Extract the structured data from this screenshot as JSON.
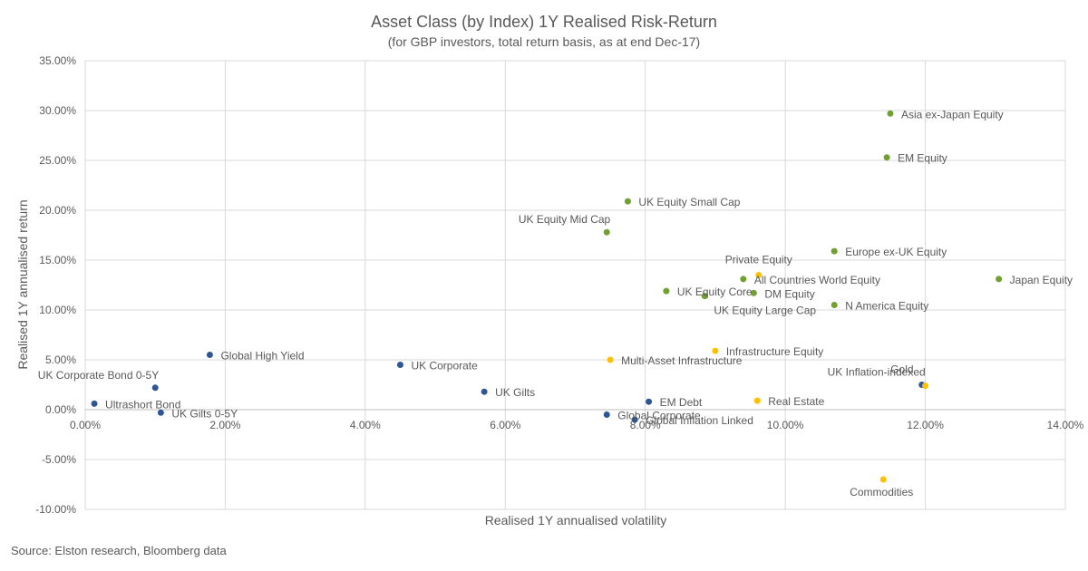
{
  "colors": {
    "fixed_income": "#2f5597",
    "equity": "#70a030",
    "alternatives": "#ffc000",
    "grid": "#d9d9d9",
    "text": "#595959"
  },
  "source_note": "Source: Elston research, Bloomberg data",
  "chart_data": {
    "type": "scatter",
    "title": "Asset Class (by Index) 1Y Realised Risk-Return",
    "subtitle": "(for GBP investors, total return basis, as at end Dec-17)",
    "xlabel": "Realised  1Y annualised volatility",
    "ylabel": "Realised 1Y annualised return",
    "xlim": [
      0,
      14
    ],
    "ylim": [
      -10,
      35
    ],
    "x_ticks": [
      0,
      2,
      4,
      6,
      8,
      10,
      12,
      14
    ],
    "y_ticks": [
      -10,
      -5,
      0,
      5,
      10,
      15,
      20,
      25,
      30,
      35
    ],
    "x_tick_labels": [
      "0.00%",
      "2.00%",
      "4.00%",
      "6.00%",
      "8.00%",
      "10.00%",
      "12.00%",
      "14.00%"
    ],
    "y_tick_labels": [
      "-10.00%",
      "-5.00%",
      "0.00%",
      "5.00%",
      "10.00%",
      "15.00%",
      "20.00%",
      "25.00%",
      "30.00%",
      "35.00%"
    ],
    "grid": true,
    "legend": "none",
    "points": [
      {
        "label": "Ultrashort Bond",
        "x": 0.13,
        "y": 0.6,
        "group": "fixed_income",
        "label_pos": "right"
      },
      {
        "label": "UK Gilts 0-5Y",
        "x": 1.08,
        "y": -0.3,
        "group": "fixed_income",
        "label_pos": "right"
      },
      {
        "label": "UK Corporate Bond 0-5Y",
        "x": 1.0,
        "y": 2.2,
        "group": "fixed_income",
        "label_pos": "above-left"
      },
      {
        "label": "Global High Yield",
        "x": 1.78,
        "y": 5.5,
        "group": "fixed_income",
        "label_pos": "right"
      },
      {
        "label": "UK Corporate",
        "x": 4.5,
        "y": 4.5,
        "group": "fixed_income",
        "label_pos": "right"
      },
      {
        "label": "UK Gilts",
        "x": 5.7,
        "y": 1.8,
        "group": "fixed_income",
        "label_pos": "right"
      },
      {
        "label": "Global Corporate",
        "x": 7.45,
        "y": -0.5,
        "group": "fixed_income",
        "label_pos": "right"
      },
      {
        "label": "Global Inflation Linked",
        "x": 7.85,
        "y": -1.0,
        "group": "fixed_income",
        "label_pos": "right"
      },
      {
        "label": "EM Debt",
        "x": 8.05,
        "y": 0.8,
        "group": "fixed_income",
        "label_pos": "right"
      },
      {
        "label": "UK Inflation-indexed",
        "x": 11.95,
        "y": 2.5,
        "group": "fixed_income",
        "label_pos": "above-left"
      },
      {
        "label": "Asia ex-Japan Equity",
        "x": 11.5,
        "y": 29.7,
        "group": "equity",
        "label_pos": "right"
      },
      {
        "label": "EM Equity",
        "x": 11.45,
        "y": 25.3,
        "group": "equity",
        "label_pos": "right"
      },
      {
        "label": "UK Equity Small Cap",
        "x": 7.75,
        "y": 20.9,
        "group": "equity",
        "label_pos": "right"
      },
      {
        "label": "UK Equity Mid Cap",
        "x": 7.45,
        "y": 17.8,
        "group": "equity",
        "label_pos": "above-left"
      },
      {
        "label": "Europe ex-UK Equity",
        "x": 10.7,
        "y": 15.9,
        "group": "equity",
        "label_pos": "right"
      },
      {
        "label": "All Countries World Equity",
        "x": 9.4,
        "y": 13.1,
        "group": "equity",
        "label_pos": "right"
      },
      {
        "label": "Japan Equity",
        "x": 13.05,
        "y": 13.1,
        "group": "equity",
        "label_pos": "right"
      },
      {
        "label": "UK Equity Core",
        "x": 8.3,
        "y": 11.9,
        "group": "equity",
        "label_pos": "right"
      },
      {
        "label": "UK Equity Large Cap",
        "x": 8.85,
        "y": 11.4,
        "group": "equity",
        "label_pos": "below-right"
      },
      {
        "label": "DM Equity",
        "x": 9.55,
        "y": 11.7,
        "group": "equity",
        "label_pos": "right"
      },
      {
        "label": "N America Equity",
        "x": 10.7,
        "y": 10.5,
        "group": "equity",
        "label_pos": "right"
      },
      {
        "label": "Private Equity",
        "x": 9.62,
        "y": 13.5,
        "group": "alternatives",
        "label_pos": "above"
      },
      {
        "label": "Multi-Asset Infrastructure",
        "x": 7.5,
        "y": 5.0,
        "group": "alternatives",
        "label_pos": "right"
      },
      {
        "label": "Infrastructure Equity",
        "x": 9.0,
        "y": 5.9,
        "group": "alternatives",
        "label_pos": "right"
      },
      {
        "label": "Real Estate",
        "x": 9.6,
        "y": 0.9,
        "group": "alternatives",
        "label_pos": "right"
      },
      {
        "label": "Gold",
        "x": 12.0,
        "y": 2.4,
        "group": "alternatives",
        "label_pos": "above-left-high"
      },
      {
        "label": "Commodities",
        "x": 11.4,
        "y": -7.0,
        "group": "alternatives",
        "label_pos": "below"
      }
    ]
  }
}
